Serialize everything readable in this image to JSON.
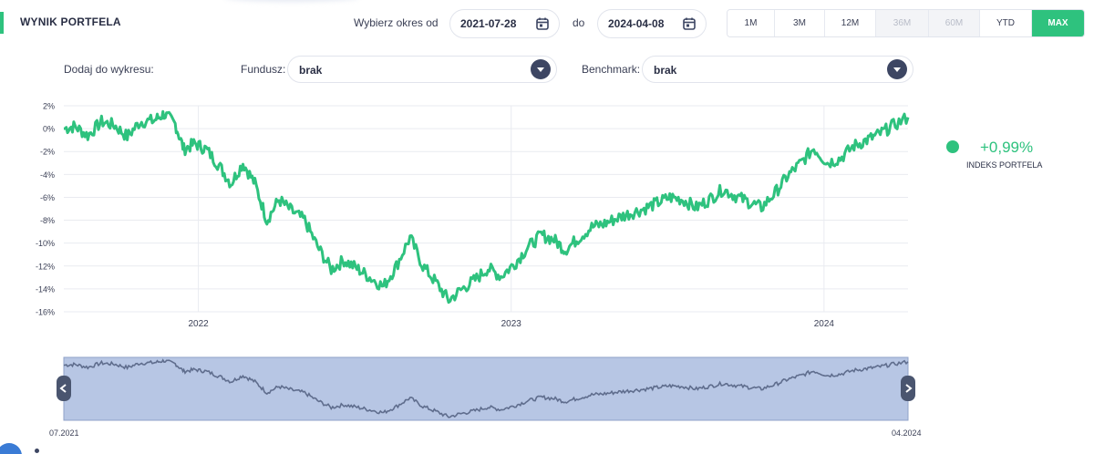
{
  "header": {
    "title": "WYNIK PORTFELA",
    "period_label": "Wybierz okres od",
    "date_from": "2021-07-28",
    "to_label": "do",
    "date_to": "2024-04-08",
    "ranges": [
      {
        "label": "1M",
        "state": "normal"
      },
      {
        "label": "3M",
        "state": "normal"
      },
      {
        "label": "12M",
        "state": "normal"
      },
      {
        "label": "36M",
        "state": "disabled"
      },
      {
        "label": "60M",
        "state": "disabled"
      },
      {
        "label": "YTD",
        "state": "normal"
      },
      {
        "label": "MAX",
        "state": "active"
      }
    ]
  },
  "controls": {
    "add_label": "Dodaj do wykresu:",
    "fund_label": "Fundusz:",
    "fund_value": "brak",
    "benchmark_label": "Benchmark:",
    "benchmark_value": "brak"
  },
  "legend": {
    "value": "+0,99%",
    "name": "INDEKS PORTFELA"
  },
  "navigator": {
    "start_label": "07.2021",
    "end_label": "04.2024"
  },
  "colors": {
    "accent": "#2ec27e",
    "navigator_fill": "#b7c6e4",
    "navigator_line": "#5f6d8d",
    "handle": "#4a556f"
  },
  "chart_data": {
    "type": "line",
    "title": "",
    "xlabel": "",
    "ylabel": "",
    "x_ticks": [
      "2022",
      "2023",
      "2024"
    ],
    "y_ticks": [
      "2%",
      "0%",
      "-2%",
      "-4%",
      "-6%",
      "-8%",
      "-10%",
      "-12%",
      "-14%",
      "-16%"
    ],
    "ylim": [
      -16,
      2
    ],
    "xlim": [
      "2021-07-28",
      "2024-04-08"
    ],
    "grid": true,
    "series": [
      {
        "name": "INDEKS PORTFELA",
        "color": "#2ec27e",
        "points": [
          [
            "2021-07-28",
            0.0
          ],
          [
            "2021-08-10",
            0.2
          ],
          [
            "2021-08-25",
            -0.6
          ],
          [
            "2021-09-10",
            0.6
          ],
          [
            "2021-09-25",
            0.3
          ],
          [
            "2021-10-10",
            -0.7
          ],
          [
            "2021-10-25",
            0.6
          ],
          [
            "2021-11-10",
            0.7
          ],
          [
            "2021-11-22",
            1.3
          ],
          [
            "2021-12-05",
            0.4
          ],
          [
            "2021-12-15",
            -1.8
          ],
          [
            "2021-12-28",
            -1.3
          ],
          [
            "2022-01-10",
            -1.8
          ],
          [
            "2022-01-25",
            -3.2
          ],
          [
            "2022-02-08",
            -4.8
          ],
          [
            "2022-02-22",
            -3.0
          ],
          [
            "2022-03-08",
            -4.8
          ],
          [
            "2022-03-22",
            -8.0
          ],
          [
            "2022-04-05",
            -6.2
          ],
          [
            "2022-04-20",
            -7.2
          ],
          [
            "2022-05-05",
            -8.0
          ],
          [
            "2022-05-20",
            -10.3
          ],
          [
            "2022-06-05",
            -12.3
          ],
          [
            "2022-06-20",
            -11.5
          ],
          [
            "2022-07-05",
            -12.2
          ],
          [
            "2022-07-20",
            -13.0
          ],
          [
            "2022-08-05",
            -13.8
          ],
          [
            "2022-08-20",
            -12.0
          ],
          [
            "2022-09-05",
            -9.5
          ],
          [
            "2022-09-20",
            -12.0
          ],
          [
            "2022-10-05",
            -13.4
          ],
          [
            "2022-10-20",
            -15.0
          ],
          [
            "2022-11-05",
            -14.0
          ],
          [
            "2022-11-20",
            -13.2
          ],
          [
            "2022-12-05",
            -12.2
          ],
          [
            "2022-12-20",
            -12.9
          ],
          [
            "2023-01-05",
            -11.8
          ],
          [
            "2023-01-20",
            -10.4
          ],
          [
            "2023-02-05",
            -9.3
          ],
          [
            "2023-02-20",
            -9.7
          ],
          [
            "2023-03-05",
            -10.6
          ],
          [
            "2023-03-20",
            -9.6
          ],
          [
            "2023-04-05",
            -8.6
          ],
          [
            "2023-04-20",
            -8.3
          ],
          [
            "2023-05-05",
            -7.8
          ],
          [
            "2023-05-20",
            -7.4
          ],
          [
            "2023-06-05",
            -7.0
          ],
          [
            "2023-06-20",
            -6.5
          ],
          [
            "2023-07-05",
            -6.0
          ],
          [
            "2023-07-20",
            -6.2
          ],
          [
            "2023-08-05",
            -6.9
          ],
          [
            "2023-08-20",
            -6.2
          ],
          [
            "2023-09-05",
            -5.3
          ],
          [
            "2023-09-20",
            -5.9
          ],
          [
            "2023-10-05",
            -6.4
          ],
          [
            "2023-10-20",
            -6.9
          ],
          [
            "2023-11-05",
            -5.6
          ],
          [
            "2023-11-20",
            -4.1
          ],
          [
            "2023-12-05",
            -3.0
          ],
          [
            "2023-12-20",
            -1.7
          ],
          [
            "2024-01-05",
            -3.0
          ],
          [
            "2024-01-20",
            -2.6
          ],
          [
            "2024-02-05",
            -1.5
          ],
          [
            "2024-02-20",
            -1.0
          ],
          [
            "2024-03-05",
            -0.5
          ],
          [
            "2024-03-20",
            0.2
          ],
          [
            "2024-04-08",
            0.99
          ]
        ]
      }
    ]
  }
}
